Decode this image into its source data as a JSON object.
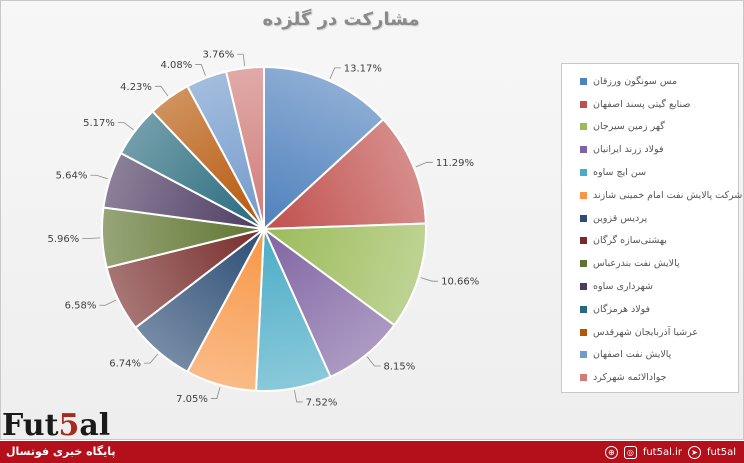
{
  "chart_data": {
    "type": "pie",
    "title": "مشارکت در گلزده",
    "series": [
      {
        "name": "مس سونگون ورزقان",
        "value": 13.17,
        "label": "13.17%",
        "color": "#4f81bd"
      },
      {
        "name": "صنایع گیتی پسند اصفهان",
        "value": 11.29,
        "label": "11.29%",
        "color": "#c0504d"
      },
      {
        "name": "گهر زمین سیرجان",
        "value": 10.66,
        "label": "10.66%",
        "color": "#9bbb59"
      },
      {
        "name": "فولاد زرند ایرانیان",
        "value": 8.15,
        "label": "8.15%",
        "color": "#8064a2"
      },
      {
        "name": "سن ایچ ساوه",
        "value": 7.52,
        "label": "7.52%",
        "color": "#4bacc6"
      },
      {
        "name": "شرکت پالایش نفت امام خمینی شازند",
        "value": 7.05,
        "label": "7.05%",
        "color": "#f79646"
      },
      {
        "name": "پردیس قزوین",
        "value": 6.74,
        "label": "6.74%",
        "color": "#2c4d75"
      },
      {
        "name": "بهشتی‌سازه گرگان",
        "value": 6.58,
        "label": "6.58%",
        "color": "#772c2a"
      },
      {
        "name": "پالایش نفت بندرعباس",
        "value": 5.96,
        "label": "5.96%",
        "color": "#5f7530"
      },
      {
        "name": "شهرداری ساوه",
        "value": 5.64,
        "label": "5.64%",
        "color": "#4d3b62"
      },
      {
        "name": "فولاد هرمزگان",
        "value": 5.17,
        "label": "5.17%",
        "color": "#276a7c"
      },
      {
        "name": "عرشیا آذربایجان شهرقدس",
        "value": 4.23,
        "label": "4.23%",
        "color": "#b65708"
      },
      {
        "name": "پالایش نفت اصفهان",
        "value": 4.08,
        "label": "4.08%",
        "color": "#729aca"
      },
      {
        "name": "جوادالائمه شهرکرد",
        "value": 3.76,
        "label": "3.76%",
        "color": "#d07c79"
      }
    ],
    "legend_position": "right"
  },
  "branding": {
    "logo_part1": "Fut",
    "logo_part2": "5",
    "logo_part3": "al",
    "tagline": "پایگاه خبری فوتسال",
    "site": "fut5al.ir",
    "handle": "fut5al"
  }
}
